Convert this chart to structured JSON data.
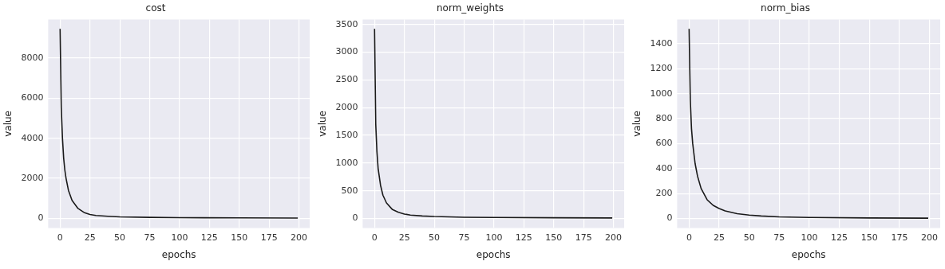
{
  "chart_data": [
    {
      "type": "line",
      "title": "cost",
      "xlabel": "epochs",
      "ylabel": "value",
      "color": "#1a1a1a",
      "grid": true,
      "x": [
        0,
        1,
        2,
        3,
        4,
        5,
        7,
        10,
        15,
        20,
        25,
        30,
        40,
        50,
        75,
        100,
        150,
        199
      ],
      "values": [
        9450,
        5500,
        4000,
        3000,
        2400,
        2000,
        1400,
        900,
        500,
        300,
        200,
        150,
        110,
        80,
        55,
        40,
        28,
        20
      ],
      "xlim": [
        -9.95,
        208.95
      ],
      "ylim": [
        -472,
        9922
      ],
      "xticks": [
        0,
        25,
        50,
        75,
        100,
        125,
        150,
        175,
        200
      ],
      "yticks": [
        0,
        2000,
        4000,
        6000,
        8000
      ]
    },
    {
      "type": "line",
      "title": "norm_weights",
      "xlabel": "epochs",
      "ylabel": "value",
      "color": "#1a1a1a",
      "grid": true,
      "x": [
        0,
        1,
        2,
        3,
        5,
        7,
        10,
        15,
        20,
        25,
        30,
        40,
        50,
        75,
        100,
        150,
        199
      ],
      "values": [
        3420,
        1700,
        1200,
        900,
        600,
        420,
        280,
        160,
        110,
        80,
        60,
        45,
        35,
        22,
        17,
        12,
        9
      ],
      "xlim": [
        -9.95,
        208.95
      ],
      "ylim": [
        -171,
        3591
      ],
      "xticks": [
        0,
        25,
        50,
        75,
        100,
        125,
        150,
        175,
        200
      ],
      "yticks": [
        0,
        500,
        1000,
        1500,
        2000,
        2500,
        3000,
        3500
      ]
    },
    {
      "type": "line",
      "title": "norm_bias",
      "xlabel": "epochs",
      "ylabel": "value",
      "color": "#1a1a1a",
      "grid": true,
      "x": [
        0,
        1,
        2,
        3,
        5,
        7,
        10,
        15,
        20,
        25,
        30,
        40,
        50,
        60,
        75,
        100,
        150,
        199
      ],
      "values": [
        1519,
        950,
        720,
        600,
        440,
        340,
        240,
        150,
        105,
        80,
        60,
        38,
        27,
        20,
        13,
        8,
        4,
        2
      ],
      "xlim": [
        -9.95,
        208.95
      ],
      "ylim": [
        -76,
        1595
      ],
      "xticks": [
        0,
        25,
        50,
        75,
        100,
        125,
        150,
        175,
        200
      ],
      "yticks": [
        0,
        200,
        400,
        600,
        800,
        1000,
        1200,
        1400
      ]
    }
  ]
}
